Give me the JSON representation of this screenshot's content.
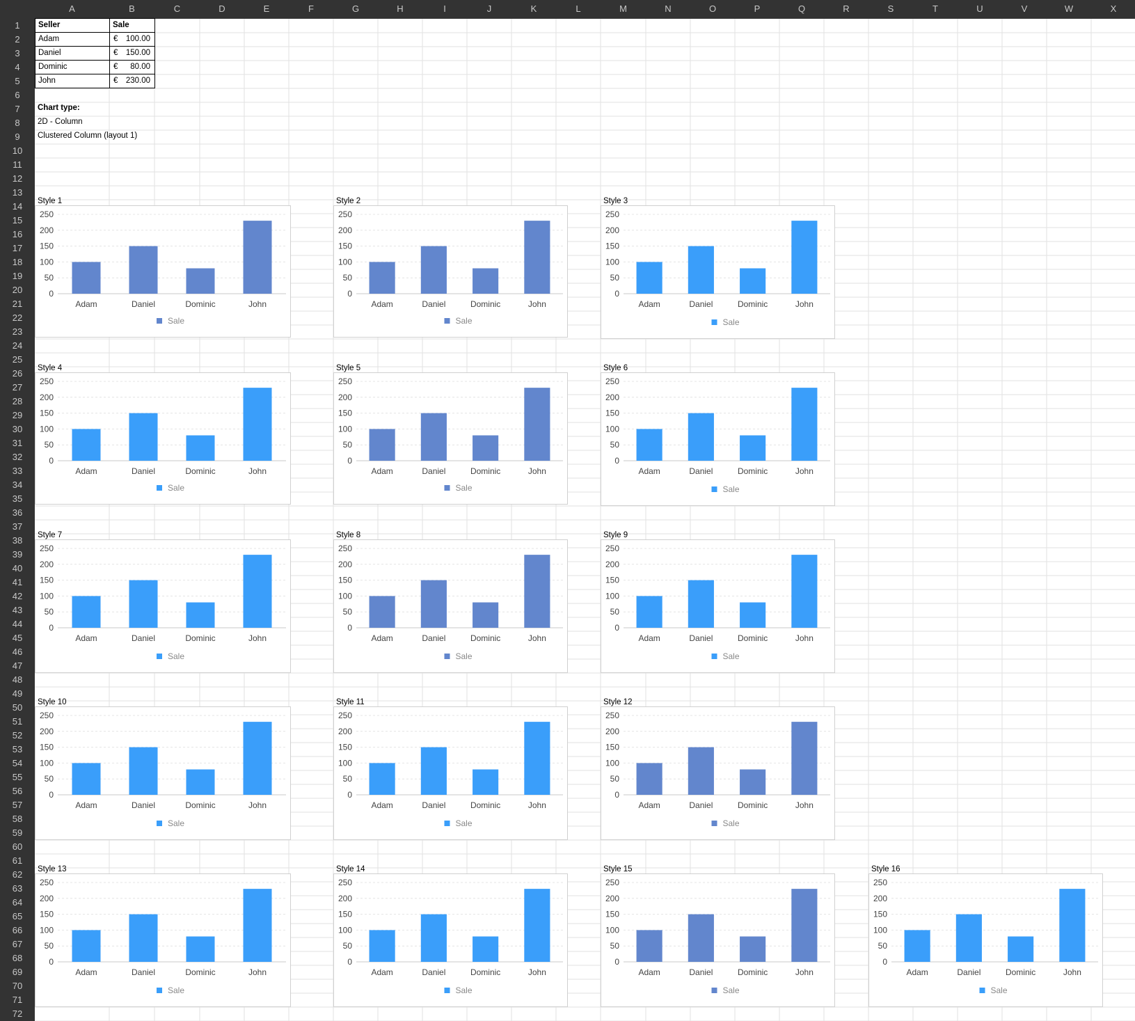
{
  "columns": [
    "A",
    "B",
    "C",
    "D",
    "E",
    "F",
    "G",
    "H",
    "I",
    "J",
    "K",
    "L",
    "M",
    "N",
    "O",
    "P",
    "Q",
    "R",
    "S",
    "T",
    "U",
    "V",
    "W",
    "X"
  ],
  "table": {
    "header": {
      "seller": "Seller",
      "sale": "Sale"
    },
    "rows": [
      {
        "seller": "Adam",
        "currency": "€",
        "amount": "100.00"
      },
      {
        "seller": "Daniel",
        "currency": "€",
        "amount": "150.00"
      },
      {
        "seller": "Dominic",
        "currency": "€",
        "amount": "80.00"
      },
      {
        "seller": "John",
        "currency": "€",
        "amount": "230.00"
      }
    ]
  },
  "chart_type": {
    "label": "Chart type:",
    "line1": "2D - Column",
    "line2": "Clustered Column (layout 1)"
  },
  "colors": {
    "dark_blue": "#6286cd",
    "bright_blue": "#3a9efa",
    "grid": "#e4e4e4",
    "axis": "#c8c8c8",
    "tick_text": "#444444",
    "legend_text": "#888888"
  },
  "chart_data": {
    "type": "bar",
    "categories": [
      "Adam",
      "Daniel",
      "Dominic",
      "John"
    ],
    "series": [
      {
        "name": "Sale",
        "values": [
          100,
          150,
          80,
          230
        ]
      }
    ],
    "yticks": [
      "0",
      "50",
      "100",
      "150",
      "200",
      "250"
    ],
    "ylim": [
      0,
      250
    ],
    "legend": "bottom",
    "grid": true
  },
  "charts": [
    {
      "title": "Style 1",
      "color": "#6286cd"
    },
    {
      "title": "Style 2",
      "color": "#6286cd"
    },
    {
      "title": "Style 3",
      "color": "#3a9efa"
    },
    {
      "title": "Style 4",
      "color": "#3a9efa"
    },
    {
      "title": "Style 5",
      "color": "#6286cd"
    },
    {
      "title": "Style 6",
      "color": "#3a9efa"
    },
    {
      "title": "Style 7",
      "color": "#3a9efa"
    },
    {
      "title": "Style 8",
      "color": "#6286cd"
    },
    {
      "title": "Style 9",
      "color": "#3a9efa"
    },
    {
      "title": "Style 10",
      "color": "#3a9efa"
    },
    {
      "title": "Style 11",
      "color": "#3a9efa"
    },
    {
      "title": "Style 12",
      "color": "#6286cd"
    },
    {
      "title": "Style 13",
      "color": "#3a9efa"
    },
    {
      "title": "Style 14",
      "color": "#3a9efa"
    },
    {
      "title": "Style 15",
      "color": "#6286cd"
    },
    {
      "title": "Style 16",
      "color": "#3a9efa"
    }
  ]
}
